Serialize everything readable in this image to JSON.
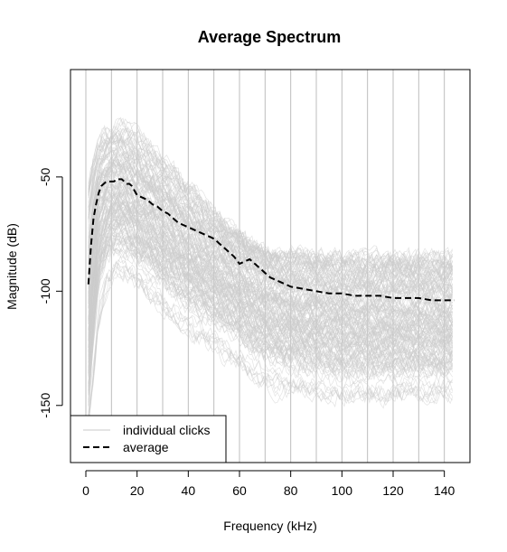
{
  "chart_data": {
    "type": "line",
    "title": "Average Spectrum",
    "xlabel": "Frequency (kHz)",
    "ylabel": "Magnitude (dB)",
    "xlim": [
      -6,
      150
    ],
    "ylim": [
      -175,
      -3
    ],
    "xticks": [
      0,
      20,
      40,
      60,
      80,
      100,
      120,
      140
    ],
    "yticks": [
      -150,
      -100,
      -50
    ],
    "vertical_gridlines_x": [
      0,
      10,
      20,
      30,
      40,
      50,
      60,
      70,
      80,
      90,
      100,
      110,
      120,
      130,
      140
    ],
    "grid": "vertical",
    "legend_position": "bottom-left",
    "series": [
      {
        "name": "individual clicks",
        "style": "thin solid gray lines (many overlapping)",
        "color": "#cccccc",
        "band_x": [
          1,
          3,
          5,
          8,
          10,
          13,
          16,
          20,
          25,
          30,
          35,
          40,
          45,
          50,
          55,
          60,
          65,
          70,
          75,
          80,
          90,
          100,
          110,
          120,
          130,
          140,
          144
        ],
        "band_upper": [
          -55,
          -42,
          -35,
          -31,
          -29,
          -28,
          -29,
          -32,
          -37,
          -43,
          -48,
          -55,
          -60,
          -66,
          -72,
          -76,
          -80,
          -84,
          -85,
          -84,
          -85,
          -86,
          -86,
          -86,
          -86,
          -86,
          -86
        ],
        "band_core_upper": [
          -70,
          -55,
          -45,
          -40,
          -38,
          -37,
          -39,
          -42,
          -47,
          -52,
          -57,
          -62,
          -67,
          -71,
          -75,
          -78,
          -82,
          -86,
          -88,
          -89,
          -90,
          -91,
          -91,
          -91,
          -91,
          -91,
          -91
        ],
        "band_lower": [
          -150,
          -120,
          -95,
          -85,
          -82,
          -80,
          -82,
          -85,
          -90,
          -95,
          -100,
          -105,
          -108,
          -112,
          -115,
          -118,
          -125,
          -128,
          -130,
          -131,
          -133,
          -135,
          -135,
          -135,
          -135,
          -135,
          -135
        ],
        "band_min": [
          -160,
          -140,
          -115,
          -100,
          -95,
          -93,
          -95,
          -98,
          -103,
          -108,
          -113,
          -118,
          -122,
          -126,
          -130,
          -133,
          -138,
          -142,
          -144,
          -145,
          -146,
          -147,
          -147,
          -147,
          -147,
          -147,
          -147
        ]
      },
      {
        "name": "average",
        "style": "dashed black line",
        "color": "#000000",
        "x": [
          1,
          2,
          3,
          4,
          5,
          6,
          7,
          8,
          9,
          10,
          11,
          12,
          13,
          14,
          15,
          16,
          17,
          18,
          19,
          20,
          22,
          24,
          26,
          28,
          30,
          32,
          34,
          36,
          38,
          40,
          42,
          44,
          46,
          48,
          50,
          52,
          54,
          56,
          58,
          60,
          62,
          64,
          66,
          68,
          70,
          72,
          74,
          76,
          78,
          80,
          85,
          90,
          95,
          100,
          105,
          110,
          115,
          120,
          125,
          130,
          135,
          140,
          144
        ],
        "y": [
          -97,
          -80,
          -68,
          -62,
          -57,
          -54,
          -53,
          -52,
          -52,
          -52,
          -52,
          -51,
          -51,
          -51,
          -52,
          -53,
          -53,
          -54,
          -56,
          -58,
          -59,
          -60,
          -62,
          -63,
          -65,
          -66,
          -68,
          -70,
          -71,
          -72,
          -73,
          -74,
          -75,
          -76,
          -77,
          -79,
          -81,
          -83,
          -85,
          -88,
          -87,
          -86,
          -88,
          -90,
          -92,
          -94,
          -95,
          -96,
          -97,
          -98,
          -99,
          -100,
          -101,
          -101,
          -102,
          -102,
          -102,
          -103,
          -103,
          -103,
          -104,
          -104,
          -104
        ]
      }
    ]
  },
  "legend": {
    "items": [
      {
        "label": "individual clicks",
        "style": "solid-gray"
      },
      {
        "label": "average",
        "style": "dashed-black"
      }
    ]
  }
}
